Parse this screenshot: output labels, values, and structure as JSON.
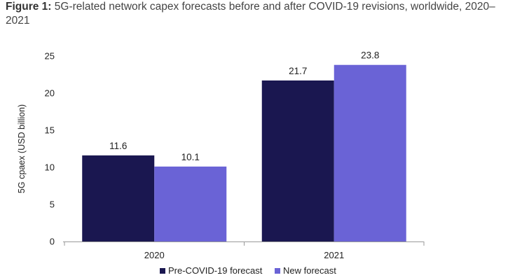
{
  "figure": {
    "label": "Figure 1:",
    "caption": "5G-related network capex forecasts before and after COVID-19 revisions, worldwide, 2020–2021"
  },
  "chart_data": {
    "type": "bar",
    "categories": [
      "2020",
      "2021"
    ],
    "series": [
      {
        "name": "Pre-COVID-19 forecast",
        "values": [
          11.6,
          21.7
        ],
        "color": "#1a1750"
      },
      {
        "name": "New forecast",
        "values": [
          10.1,
          23.8
        ],
        "color": "#6a63d6"
      }
    ],
    "ylabel": "5G cpaex (USD billion)",
    "ylim": [
      0,
      25
    ],
    "yticks": [
      0,
      5,
      10,
      15,
      20,
      25
    ],
    "data_labels": true,
    "grid": false,
    "legend": "bottom-center"
  }
}
